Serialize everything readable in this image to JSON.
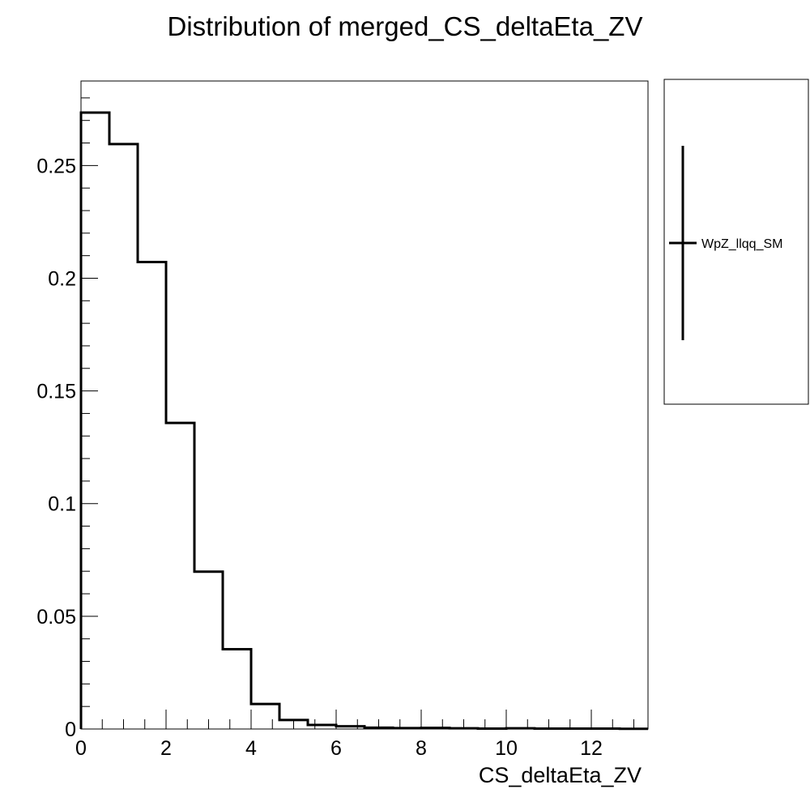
{
  "chart_data": {
    "type": "bar",
    "style": "step-histogram",
    "title": "Distribution of merged_CS_deltaEta_ZV",
    "xlabel": "CS_deltaEta_ZV",
    "ylabel": "",
    "xlim": [
      0,
      13.333
    ],
    "ylim": [
      0,
      0.2875
    ],
    "x_ticks": [
      0,
      2,
      4,
      6,
      8,
      10,
      12
    ],
    "x_tick_labels": [
      "0",
      "2",
      "4",
      "6",
      "8",
      "10",
      "12"
    ],
    "y_ticks": [
      0,
      0.05,
      0.1,
      0.15,
      0.2,
      0.25
    ],
    "y_tick_labels": [
      "0",
      "0.05",
      "0.1",
      "0.15",
      "0.2",
      "0.25"
    ],
    "bin_edges": [
      0,
      0.6667,
      1.3333,
      2.0,
      2.6667,
      3.3333,
      4.0,
      4.6667,
      5.3333,
      6.0,
      6.6667,
      7.3333,
      8.0,
      8.6667,
      9.3333,
      10.0,
      10.6667,
      11.3333,
      12.0,
      12.6667,
      13.3333
    ],
    "series": [
      {
        "name": "WpZ_llqq_SM",
        "color": "#000000",
        "values": [
          0.2735,
          0.2595,
          0.2072,
          0.1358,
          0.0698,
          0.0354,
          0.0111,
          0.004,
          0.0018,
          0.0012,
          0.0006,
          0.0004,
          0.0005,
          0.0003,
          0.0002,
          0.0003,
          0.0002,
          0.0002,
          0.0002,
          0.0001
        ]
      }
    ],
    "grid": false,
    "legend": {
      "placement": "right",
      "entries": [
        "WpZ_llqq_SM"
      ]
    }
  }
}
